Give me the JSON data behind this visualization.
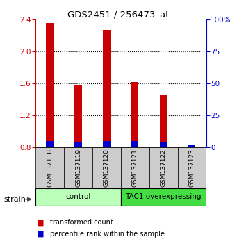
{
  "title": "GDS2451 / 256473_at",
  "samples": [
    "GSM137118",
    "GSM137119",
    "GSM137120",
    "GSM137121",
    "GSM137122",
    "GSM137123"
  ],
  "red_values": [
    2.36,
    1.59,
    2.27,
    1.62,
    1.46,
    0.83
  ],
  "blue_percentiles": [
    5,
    4,
    5,
    5,
    4,
    2
  ],
  "baseline": 0.8,
  "ylim": [
    0.8,
    2.4
  ],
  "yticks_red": [
    0.8,
    1.2,
    1.6,
    2.0,
    2.4
  ],
  "yticks_blue": [
    0,
    25,
    50,
    75,
    100
  ],
  "groups": [
    {
      "label": "control",
      "start": 0,
      "end": 3,
      "color": "#bbffbb"
    },
    {
      "label": "TAC1 overexpressing",
      "start": 3,
      "end": 6,
      "color": "#44dd44"
    }
  ],
  "bar_width": 0.25,
  "red_color": "#cc0000",
  "blue_color": "#0000cc",
  "axis_color_left": "#cc0000",
  "axis_color_right": "#0000cc",
  "bg_color": "#ffffff",
  "sample_box_color": "#cccccc",
  "legend_red_label": "transformed count",
  "legend_blue_label": "percentile rank within the sample",
  "strain_label": "strain"
}
